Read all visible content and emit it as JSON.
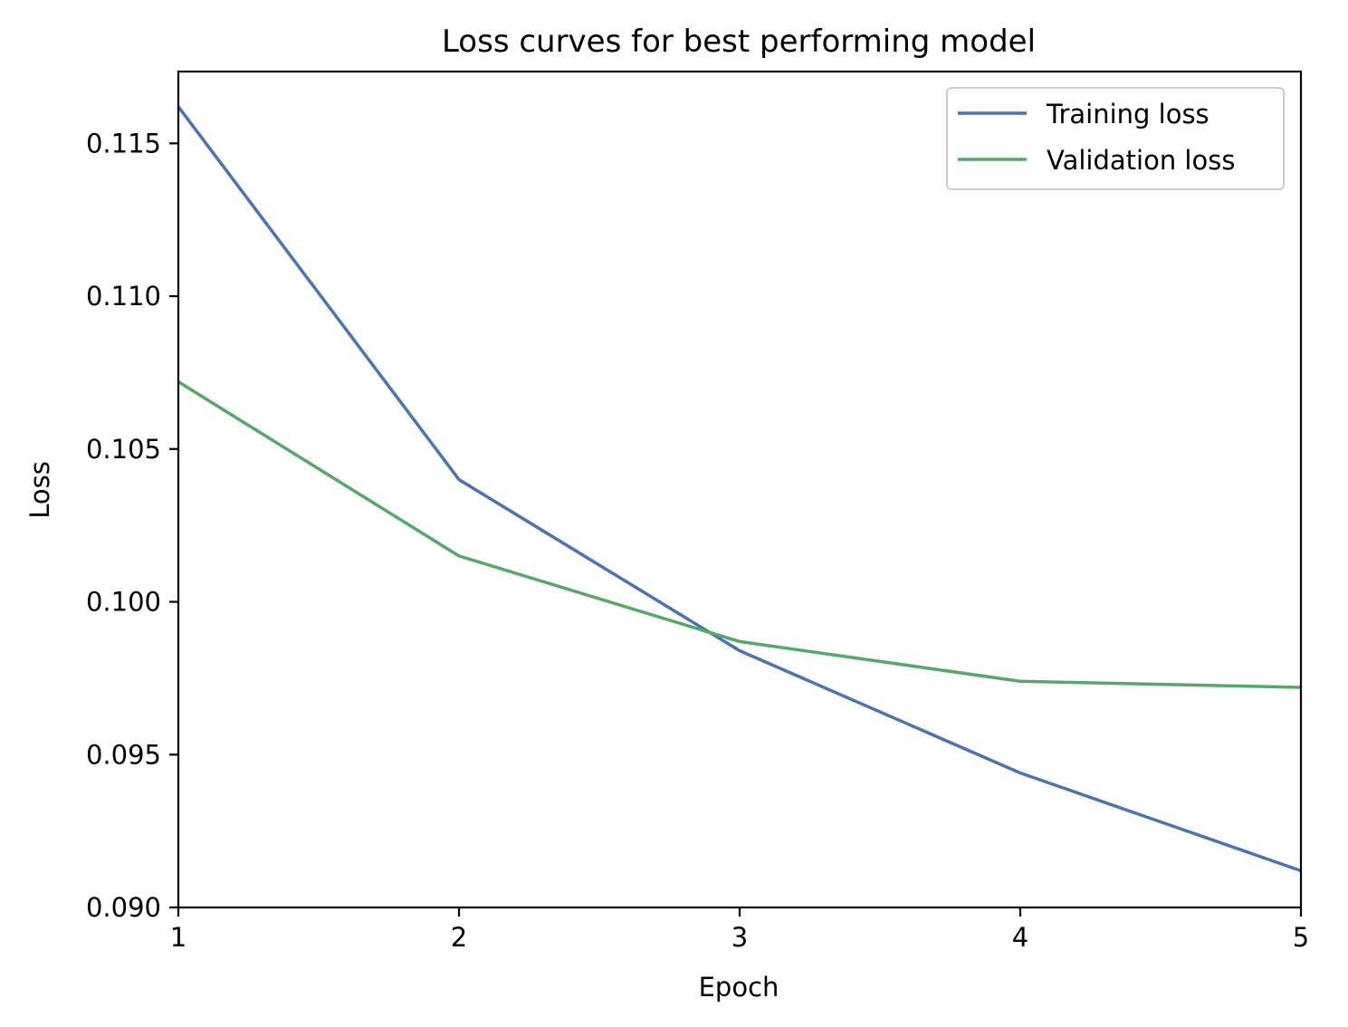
{
  "chart_data": {
    "type": "line",
    "title": "Loss curves for best performing model",
    "xlabel": "Epoch",
    "ylabel": "Loss",
    "x": [
      1,
      2,
      3,
      4,
      5
    ],
    "xticks": [
      "1",
      "2",
      "3",
      "4",
      "5"
    ],
    "yticks": [
      "0.090",
      "0.095",
      "0.100",
      "0.105",
      "0.110",
      "0.115"
    ],
    "xlim": [
      1,
      5
    ],
    "ylim": [
      0.09,
      0.11735
    ],
    "grid": false,
    "legend_position": "top-right",
    "series": [
      {
        "name": "Training loss",
        "color": "#4c72b0",
        "values": [
          0.1162,
          0.104,
          0.0984,
          0.0944,
          0.0912
        ]
      },
      {
        "name": "Validation loss",
        "color": "#55a868",
        "values": [
          0.1072,
          0.1015,
          0.0987,
          0.0974,
          0.0972
        ]
      }
    ]
  }
}
